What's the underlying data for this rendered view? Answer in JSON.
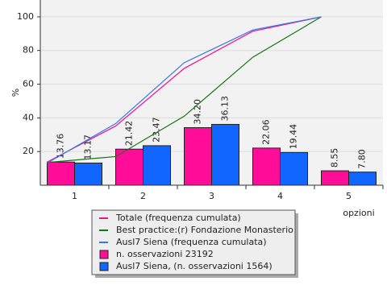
{
  "chart_data": {
    "type": "bar",
    "x_label": "opzioni",
    "y_label": "%",
    "categories": [
      "1",
      "2",
      "3",
      "4",
      "5"
    ],
    "ylim": [
      0,
      110
    ],
    "yticks": [
      20,
      40,
      60,
      80,
      100
    ],
    "grid": true,
    "series": [
      {
        "name": "Totale (frequenza cumulata)",
        "type": "line",
        "color": "#ee1188",
        "values": [
          13.76,
          35.18,
          69.38,
          91.44,
          99.99
        ]
      },
      {
        "name": "Best practice:(r) Fondazione Monasterio",
        "type": "line",
        "color": "#117711",
        "values": [
          13.5,
          17,
          41,
          76,
          100
        ]
      },
      {
        "name": "Ausl7 Siena (frequenza cumulata)",
        "type": "line",
        "color": "#3377ee",
        "values": [
          13.17,
          36.64,
          72.77,
          92.21,
          100
        ]
      },
      {
        "name": "n. osservazioni 23192",
        "type": "bar",
        "color": "#ff0d99",
        "values": [
          13.76,
          21.42,
          34.2,
          22.06,
          8.55
        ],
        "value_labels": [
          "13.76",
          "21.42",
          "34.20",
          "22.06",
          "8.55"
        ]
      },
      {
        "name": "Ausl7 Siena, (n. osservazioni 1564)",
        "type": "bar",
        "color": "#1166ff",
        "values": [
          13.17,
          23.47,
          36.13,
          19.44,
          7.8
        ],
        "value_labels": [
          "13.17",
          "23.47",
          "36.13",
          "19.44",
          "7.80"
        ]
      }
    ]
  }
}
